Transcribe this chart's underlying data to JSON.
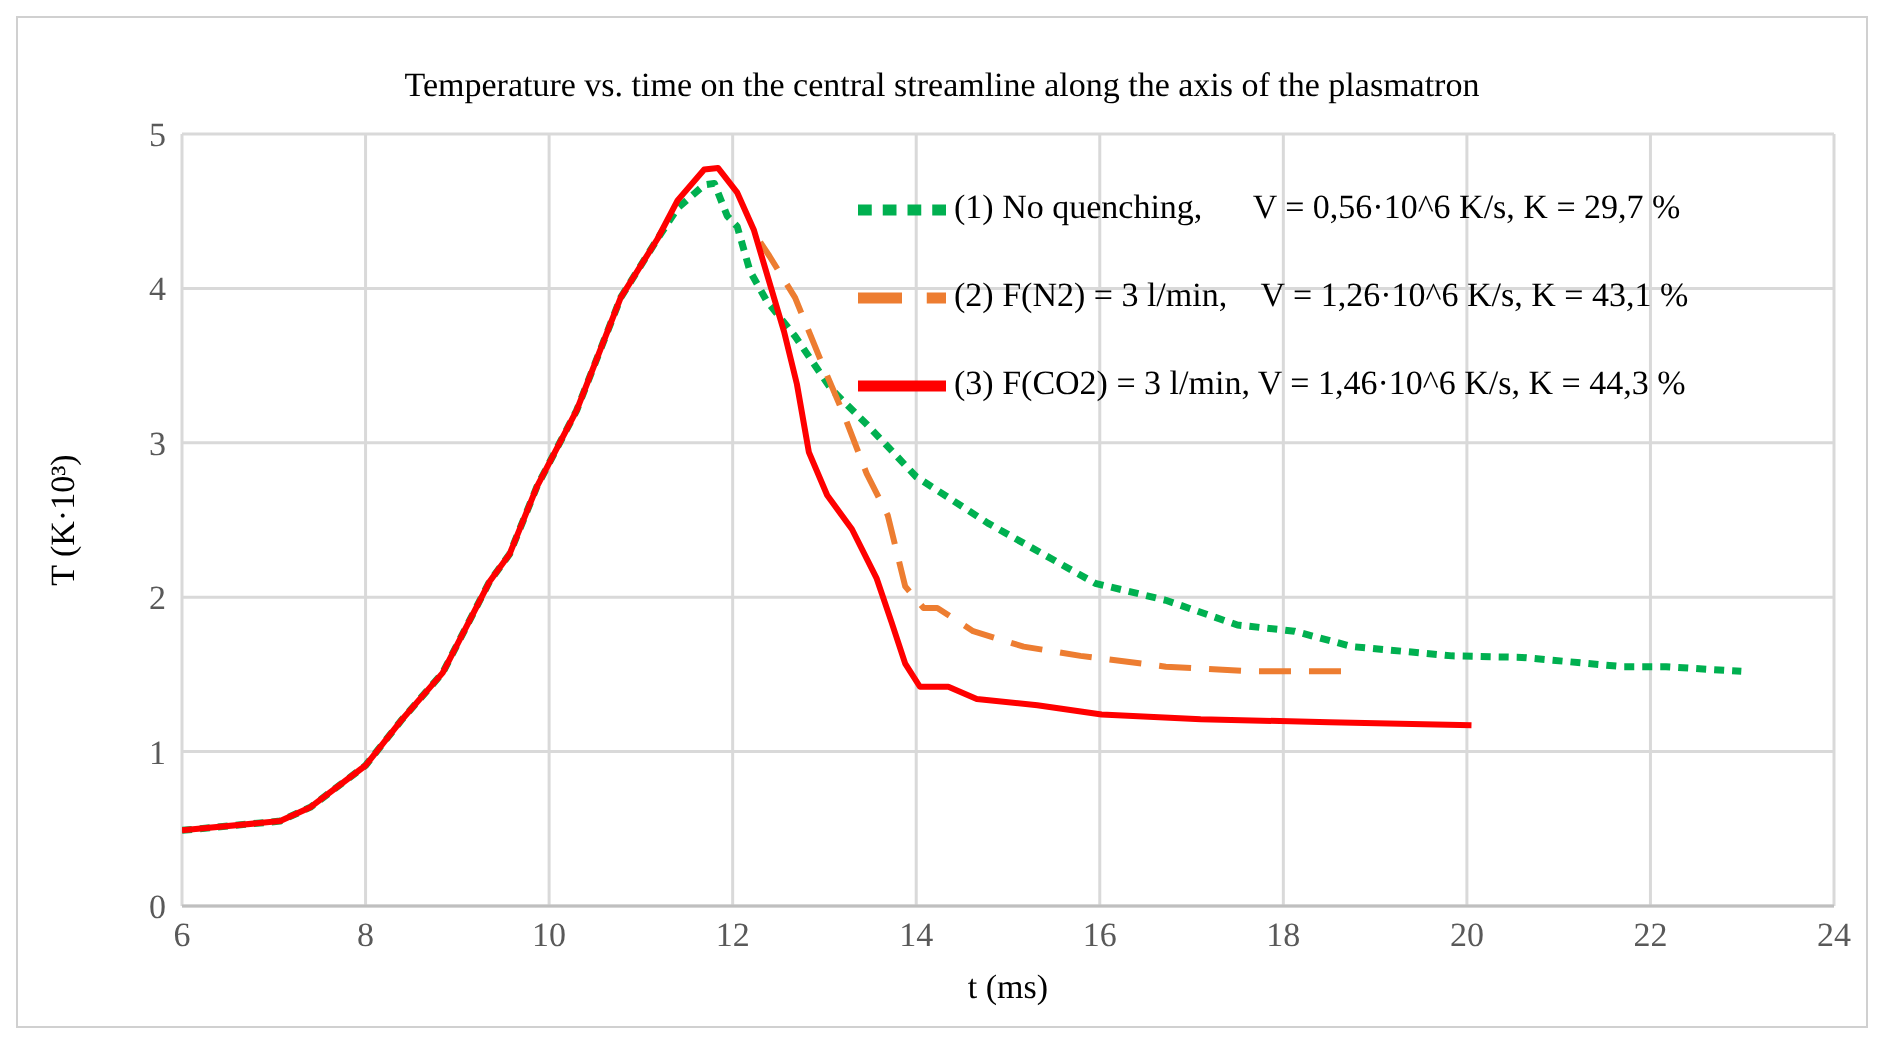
{
  "chart_data": {
    "type": "line",
    "title": "Temperature vs. time on the central streamline along the axis of the plasmatron",
    "xlabel": "t (ms)",
    "ylabel": "T (K·10³)",
    "xlim": [
      6,
      24
    ],
    "xticks": [
      6,
      8,
      10,
      12,
      14,
      16,
      18,
      20,
      22,
      24
    ],
    "ylim": [
      0,
      5
    ],
    "yticks": [
      0,
      1,
      2,
      3,
      4,
      5
    ],
    "grid": true,
    "legend": "top right",
    "marker": "none",
    "series": [
      {
        "name": "(1) No quenching,      V = 0,56·10^6 K/s, K = 29,7 %",
        "color": "#00b050",
        "line_style": "dotted",
        "x": [
          6,
          7.07,
          7.4,
          8,
          8.4,
          8.84,
          9.35,
          9.57,
          9.87,
          10.3,
          10.78,
          11.18,
          11.4,
          11.69,
          11.8,
          11.94,
          12.05,
          12.19,
          12.37,
          12.68,
          13.07,
          13.46,
          14.0,
          14.78,
          15.95,
          16.72,
          17.5,
          18.12,
          18.75,
          19.84,
          20.6,
          21.7,
          22.17,
          22.99
        ],
        "values": [
          0.49,
          0.55,
          0.64,
          0.91,
          1.21,
          1.51,
          2.1,
          2.28,
          2.72,
          3.21,
          3.94,
          4.32,
          4.52,
          4.67,
          4.68,
          4.47,
          4.4,
          4.11,
          3.92,
          3.69,
          3.35,
          3.12,
          2.78,
          2.48,
          2.09,
          1.98,
          1.82,
          1.78,
          1.68,
          1.62,
          1.61,
          1.55,
          1.55,
          1.52
        ]
      },
      {
        "name": "(2) F(N2) = 3 l/min,    V = 1,26·10^6 K/s, K = 43,1 %",
        "color": "#ed7d31",
        "line_style": "dashed",
        "x": [
          12.3,
          12.4,
          12.68,
          12.99,
          13.22,
          13.46,
          13.69,
          13.88,
          14.08,
          14.23,
          14.62,
          15.17,
          15.79,
          16.72,
          17.66,
          18.63
        ],
        "values": [
          4.3,
          4.21,
          3.94,
          3.49,
          3.17,
          2.8,
          2.53,
          2.07,
          1.93,
          1.93,
          1.78,
          1.68,
          1.62,
          1.55,
          1.52,
          1.52
        ]
      },
      {
        "name": "(3) F(CO2) = 3 l/min, V = 1,46·10^6 K/s, K = 44,3 %",
        "color": "#ff0000",
        "line_style": "solid",
        "x": [
          6,
          7.07,
          7.4,
          8,
          8.4,
          8.84,
          9.35,
          9.57,
          9.87,
          10.3,
          10.78,
          11.18,
          11.4,
          11.69,
          11.84,
          12.05,
          12.23,
          12.56,
          12.7,
          12.83,
          13.03,
          13.3,
          13.57,
          13.73,
          13.88,
          14.04,
          14.35,
          14.66,
          15.32,
          16.02,
          17.1,
          18.5,
          20.05
        ],
        "values": [
          0.49,
          0.55,
          0.64,
          0.91,
          1.21,
          1.51,
          2.1,
          2.28,
          2.72,
          3.21,
          3.94,
          4.32,
          4.57,
          4.77,
          4.78,
          4.62,
          4.38,
          3.72,
          3.38,
          2.94,
          2.66,
          2.44,
          2.12,
          1.84,
          1.57,
          1.42,
          1.42,
          1.34,
          1.3,
          1.24,
          1.21,
          1.19,
          1.17
        ]
      }
    ]
  }
}
